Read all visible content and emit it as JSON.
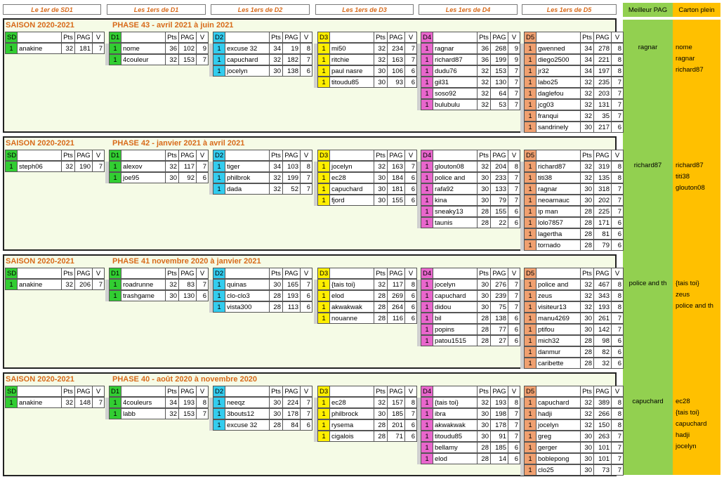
{
  "headers": [
    "Le 1er de SD1",
    "Les 1ers de D1",
    "Les 1ers de D2",
    "Les 1ers de D3",
    "Les 1ers de D4",
    "Les 1ers de D5"
  ],
  "right_headers": {
    "pag": "Meilleur PAG",
    "cp": "Carton plein"
  },
  "colors": {
    "SD1": "#32cd32",
    "D1": "#32cd32",
    "D2": "#33ccee",
    "D3": "#ffee00",
    "D4": "#e866cc",
    "D5": "#f0a070"
  },
  "columns": {
    "pts": "Pts",
    "pag": "PAG",
    "v": "V"
  },
  "phases": [
    {
      "season": "SAISON 2020-2021",
      "phase": "PHASE 43 - avril 2021 à juin 2021",
      "best_pag": "ragnar",
      "carton_plein": [
        "nome",
        "ragnar",
        "richard87"
      ],
      "divs": {
        "SD1": [
          [
            "1",
            "anakine",
            "32",
            "181",
            "7"
          ]
        ],
        "D1": [
          [
            "1",
            "nome",
            "36",
            "102",
            "9"
          ],
          [
            "1",
            "4couleur",
            "32",
            "153",
            "7"
          ]
        ],
        "D2": [
          [
            "1",
            "excuse 32",
            "34",
            "19",
            "8"
          ],
          [
            "1",
            "capuchard",
            "32",
            "182",
            "7"
          ],
          [
            "1",
            "jocelyn",
            "30",
            "138",
            "6"
          ]
        ],
        "D3": [
          [
            "1",
            "mi50",
            "32",
            "234",
            "7"
          ],
          [
            "1",
            "ritchie",
            "32",
            "163",
            "7"
          ],
          [
            "1",
            "paul nasre",
            "30",
            "106",
            "6"
          ],
          [
            "1",
            "titoudu85",
            "30",
            "93",
            "6"
          ]
        ],
        "D4": [
          [
            "1",
            "ragnar",
            "36",
            "268",
            "9"
          ],
          [
            "1",
            "richard87",
            "36",
            "199",
            "9"
          ],
          [
            "1",
            "dudu76",
            "32",
            "153",
            "7"
          ],
          [
            "1",
            "gil31",
            "32",
            "130",
            "7"
          ],
          [
            "1",
            "soso92",
            "32",
            "64",
            "7"
          ],
          [
            "1",
            "bulubulu",
            "32",
            "53",
            "7"
          ]
        ],
        "D5": [
          [
            "1",
            "gwenned",
            "34",
            "278",
            "8"
          ],
          [
            "1",
            "diego2500",
            "34",
            "221",
            "8"
          ],
          [
            "1",
            "jr32",
            "34",
            "197",
            "8"
          ],
          [
            "1",
            "labo25",
            "32",
            "235",
            "7"
          ],
          [
            "1",
            "daglefou",
            "32",
            "203",
            "7"
          ],
          [
            "1",
            "jcg03",
            "32",
            "131",
            "7"
          ],
          [
            "1",
            "franqui",
            "32",
            "35",
            "7"
          ],
          [
            "1",
            "sandrinely",
            "30",
            "217",
            "6"
          ]
        ]
      }
    },
    {
      "season": "SAISON 2020-2021",
      "phase": "PHASE 42 - janvier 2021 à avril 2021",
      "best_pag": "richard87",
      "carton_plein": [
        "richard87",
        "titi38",
        "glouton08"
      ],
      "divs": {
        "SD1": [
          [
            "1",
            "steph06",
            "32",
            "190",
            "7"
          ]
        ],
        "D1": [
          [
            "1",
            "alexov",
            "32",
            "117",
            "7"
          ],
          [
            "1",
            "joe95",
            "30",
            "92",
            "6"
          ]
        ],
        "D2": [
          [
            "1",
            "tiger",
            "34",
            "103",
            "8"
          ],
          [
            "1",
            "philbrok",
            "32",
            "199",
            "7"
          ],
          [
            "1",
            "dada",
            "32",
            "52",
            "7"
          ]
        ],
        "D3": [
          [
            "1",
            "jocelyn",
            "32",
            "163",
            "7"
          ],
          [
            "1",
            "ec28",
            "30",
            "184",
            "6"
          ],
          [
            "1",
            "capuchard",
            "30",
            "181",
            "6"
          ],
          [
            "1",
            "fjord",
            "30",
            "155",
            "6"
          ]
        ],
        "D4": [
          [
            "1",
            "glouton08",
            "32",
            "204",
            "8"
          ],
          [
            "1",
            "police and",
            "30",
            "233",
            "7"
          ],
          [
            "1",
            "rafa92",
            "30",
            "133",
            "7"
          ],
          [
            "1",
            "kina",
            "30",
            "79",
            "7"
          ],
          [
            "1",
            "sneaky13",
            "28",
            "155",
            "6"
          ],
          [
            "1",
            "taunis",
            "28",
            "22",
            "6"
          ]
        ],
        "D5": [
          [
            "1",
            "richard87",
            "32",
            "319",
            "8"
          ],
          [
            "1",
            "titi38",
            "32",
            "135",
            "8"
          ],
          [
            "1",
            "ragnar",
            "30",
            "318",
            "7"
          ],
          [
            "1",
            "neoarnauc",
            "30",
            "202",
            "7"
          ],
          [
            "1",
            "ip man",
            "28",
            "225",
            "7"
          ],
          [
            "1",
            "lolo7857",
            "28",
            "171",
            "6"
          ],
          [
            "1",
            "lagertha",
            "28",
            "81",
            "6"
          ],
          [
            "1",
            "tornado",
            "28",
            "79",
            "6"
          ]
        ]
      }
    },
    {
      "season": "SAISON 2020-2021",
      "phase": "PHASE 41 novembre 2020 à janvier 2021",
      "best_pag": "police and th",
      "carton_plein": [
        "{tais toi}",
        "zeus",
        "police and th"
      ],
      "divs": {
        "SD1": [
          [
            "1",
            "anakine",
            "32",
            "206",
            "7"
          ]
        ],
        "D1": [
          [
            "1",
            "roadrunne",
            "32",
            "83",
            "7"
          ],
          [
            "1",
            "trashgame",
            "30",
            "130",
            "6"
          ]
        ],
        "D2": [
          [
            "1",
            "quinas",
            "30",
            "165",
            "7"
          ],
          [
            "1",
            "clo-clo3",
            "28",
            "193",
            "6"
          ],
          [
            "1",
            "vista300",
            "28",
            "113",
            "6"
          ]
        ],
        "D3": [
          [
            "1",
            "{tais toi}",
            "32",
            "117",
            "8"
          ],
          [
            "1",
            "elod",
            "28",
            "269",
            "6"
          ],
          [
            "1",
            "akwakwak",
            "28",
            "264",
            "6"
          ],
          [
            "1",
            "nouanne",
            "28",
            "116",
            "6"
          ]
        ],
        "D4": [
          [
            "1",
            "jocelyn",
            "30",
            "276",
            "7"
          ],
          [
            "1",
            "capuchard",
            "30",
            "239",
            "7"
          ],
          [
            "1",
            "didou",
            "30",
            "75",
            "7"
          ],
          [
            "1",
            "bil",
            "28",
            "138",
            "6"
          ],
          [
            "1",
            "popins",
            "28",
            "77",
            "6"
          ],
          [
            "1",
            "patou1515",
            "28",
            "27",
            "6"
          ]
        ],
        "D5": [
          [
            "1",
            "police and",
            "32",
            "467",
            "8"
          ],
          [
            "1",
            "zeus",
            "32",
            "343",
            "8"
          ],
          [
            "1",
            "visiteur13",
            "32",
            "193",
            "8"
          ],
          [
            "1",
            "manu4269",
            "30",
            "261",
            "7"
          ],
          [
            "1",
            "ptifou",
            "30",
            "142",
            "7"
          ],
          [
            "1",
            "mich32",
            "28",
            "98",
            "6"
          ],
          [
            "1",
            "danmur",
            "28",
            "82",
            "6"
          ],
          [
            "1",
            "caribette",
            "28",
            "32",
            "6"
          ]
        ]
      }
    },
    {
      "season": "SAISON 2020-2021",
      "phase": "PHASE 40 - août 2020 à novembre 2020",
      "best_pag": "capuchard",
      "carton_plein": [
        "ec28",
        "{tais toi}",
        "capuchard",
        "hadji",
        "jocelyn"
      ],
      "divs": {
        "SD1": [
          [
            "1",
            "anakine",
            "32",
            "148",
            "7"
          ]
        ],
        "D1": [
          [
            "1",
            "4couleurs",
            "34",
            "193",
            "8"
          ],
          [
            "1",
            "labb",
            "32",
            "153",
            "7"
          ]
        ],
        "D2": [
          [
            "1",
            "neeqz",
            "30",
            "224",
            "7"
          ],
          [
            "1",
            "3bouts12",
            "30",
            "178",
            "7"
          ],
          [
            "1",
            "excuse 32",
            "28",
            "84",
            "6"
          ]
        ],
        "D3": [
          [
            "1",
            "ec28",
            "32",
            "157",
            "8"
          ],
          [
            "1",
            "philbrock",
            "30",
            "185",
            "7"
          ],
          [
            "1",
            "rysema",
            "28",
            "201",
            "6"
          ],
          [
            "1",
            "cigalois",
            "28",
            "71",
            "6"
          ]
        ],
        "D4": [
          [
            "1",
            "{tais toi}",
            "32",
            "193",
            "8"
          ],
          [
            "1",
            "ibra",
            "30",
            "198",
            "7"
          ],
          [
            "1",
            "akwakwak",
            "30",
            "178",
            "7"
          ],
          [
            "1",
            "titoudu85",
            "30",
            "91",
            "7"
          ],
          [
            "1",
            "bellamy",
            "28",
            "185",
            "6"
          ],
          [
            "1",
            "elod",
            "28",
            "14",
            "6"
          ]
        ],
        "D5": [
          [
            "1",
            "capuchard",
            "32",
            "389",
            "8"
          ],
          [
            "1",
            "hadji",
            "32",
            "266",
            "8"
          ],
          [
            "1",
            "jocelyn",
            "32",
            "150",
            "8"
          ],
          [
            "1",
            "greg",
            "30",
            "263",
            "7"
          ],
          [
            "1",
            "gerger",
            "30",
            "101",
            "7"
          ],
          [
            "1",
            "boblepong",
            "30",
            "101",
            "7"
          ],
          [
            "1",
            "clo25",
            "30",
            "73",
            "7"
          ]
        ]
      }
    }
  ]
}
